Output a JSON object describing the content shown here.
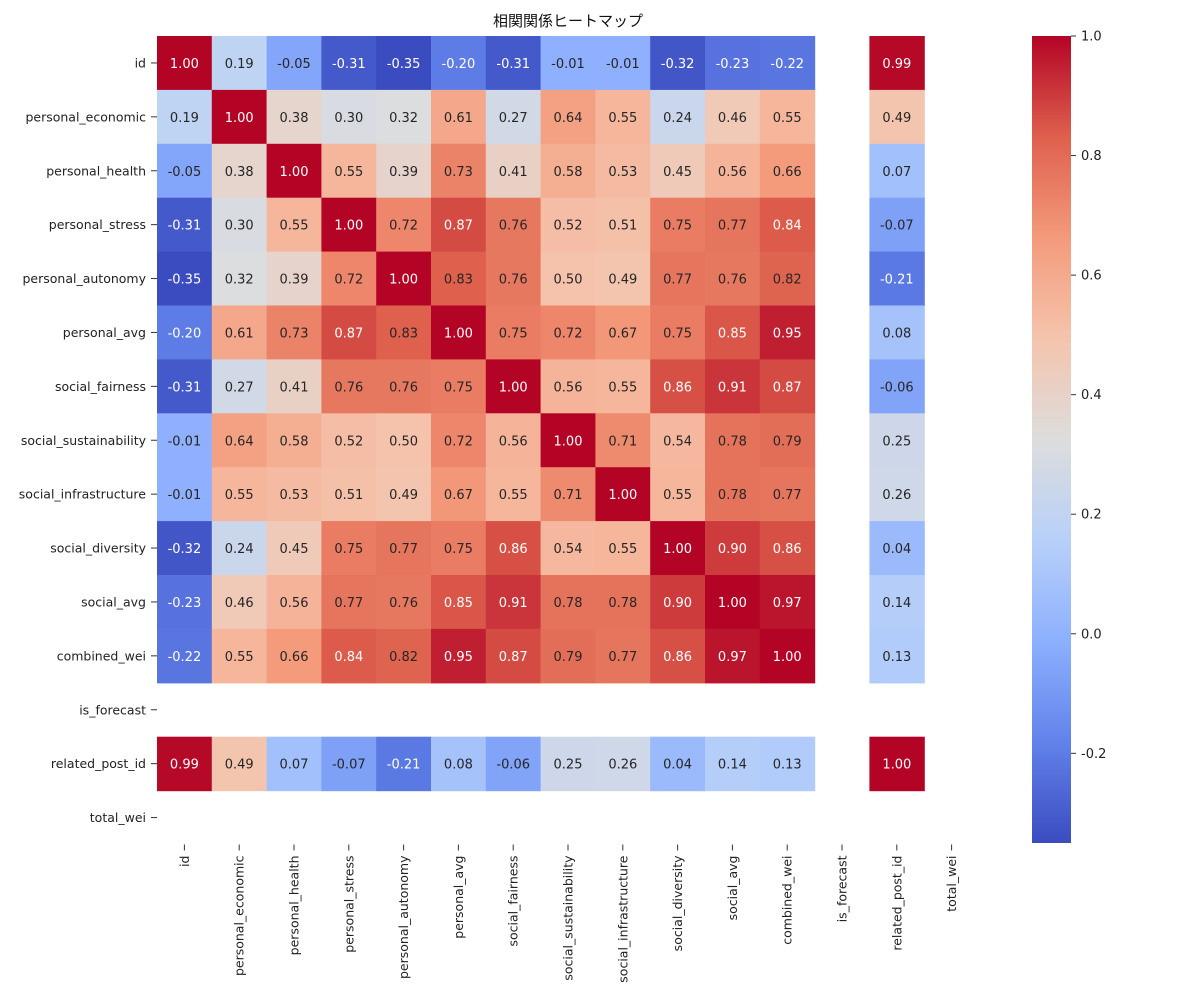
{
  "chart_data": {
    "type": "heatmap",
    "title": "相関関係ヒートマップ",
    "colormap": "coolwarm",
    "x_categories": [
      "id",
      "personal_economic",
      "personal_health",
      "personal_stress",
      "personal_autonomy",
      "personal_avg",
      "social_fairness",
      "social_sustainability",
      "social_infrastructure",
      "social_diversity",
      "social_avg",
      "combined_wei",
      "is_forecast",
      "related_post_id",
      "total_wei"
    ],
    "y_categories": [
      "id",
      "personal_economic",
      "personal_health",
      "personal_stress",
      "personal_autonomy",
      "personal_avg",
      "social_fairness",
      "social_sustainability",
      "social_infrastructure",
      "social_diversity",
      "social_avg",
      "combined_wei",
      "is_forecast",
      "related_post_id",
      "total_wei"
    ],
    "values": [
      [
        1.0,
        0.19,
        -0.05,
        -0.31,
        -0.35,
        -0.2,
        -0.31,
        -0.01,
        -0.01,
        -0.32,
        -0.23,
        -0.22,
        null,
        0.99,
        null
      ],
      [
        0.19,
        1.0,
        0.38,
        0.3,
        0.32,
        0.61,
        0.27,
        0.64,
        0.55,
        0.24,
        0.46,
        0.55,
        null,
        0.49,
        null
      ],
      [
        -0.05,
        0.38,
        1.0,
        0.55,
        0.39,
        0.73,
        0.41,
        0.58,
        0.53,
        0.45,
        0.56,
        0.66,
        null,
        0.07,
        null
      ],
      [
        -0.31,
        0.3,
        0.55,
        1.0,
        0.72,
        0.87,
        0.76,
        0.52,
        0.51,
        0.75,
        0.77,
        0.84,
        null,
        -0.07,
        null
      ],
      [
        -0.35,
        0.32,
        0.39,
        0.72,
        1.0,
        0.83,
        0.76,
        0.5,
        0.49,
        0.77,
        0.76,
        0.82,
        null,
        -0.21,
        null
      ],
      [
        -0.2,
        0.61,
        0.73,
        0.87,
        0.83,
        1.0,
        0.75,
        0.72,
        0.67,
        0.75,
        0.85,
        0.95,
        null,
        0.08,
        null
      ],
      [
        -0.31,
        0.27,
        0.41,
        0.76,
        0.76,
        0.75,
        1.0,
        0.56,
        0.55,
        0.86,
        0.91,
        0.87,
        null,
        -0.06,
        null
      ],
      [
        -0.01,
        0.64,
        0.58,
        0.52,
        0.5,
        0.72,
        0.56,
        1.0,
        0.71,
        0.54,
        0.78,
        0.79,
        null,
        0.25,
        null
      ],
      [
        -0.01,
        0.55,
        0.53,
        0.51,
        0.49,
        0.67,
        0.55,
        0.71,
        1.0,
        0.55,
        0.78,
        0.77,
        null,
        0.26,
        null
      ],
      [
        -0.32,
        0.24,
        0.45,
        0.75,
        0.77,
        0.75,
        0.86,
        0.54,
        0.55,
        1.0,
        0.9,
        0.86,
        null,
        0.04,
        null
      ],
      [
        -0.23,
        0.46,
        0.56,
        0.77,
        0.76,
        0.85,
        0.91,
        0.78,
        0.78,
        0.9,
        1.0,
        0.97,
        null,
        0.14,
        null
      ],
      [
        -0.22,
        0.55,
        0.66,
        0.84,
        0.82,
        0.95,
        0.87,
        0.79,
        0.77,
        0.86,
        0.97,
        1.0,
        null,
        0.13,
        null
      ],
      [
        null,
        null,
        null,
        null,
        null,
        null,
        null,
        null,
        null,
        null,
        null,
        null,
        null,
        null,
        null
      ],
      [
        0.99,
        0.49,
        0.07,
        -0.07,
        -0.21,
        0.08,
        -0.06,
        0.25,
        0.26,
        0.04,
        0.14,
        0.13,
        null,
        1.0,
        null
      ],
      [
        null,
        null,
        null,
        null,
        null,
        null,
        null,
        null,
        null,
        null,
        null,
        null,
        null,
        null,
        null
      ]
    ],
    "value_format": "2 decimals",
    "colorbar": {
      "range": [
        -0.35,
        1.0
      ],
      "ticks": [
        1.0,
        0.8,
        0.6,
        0.4,
        0.2,
        0.0,
        -0.2
      ],
      "tick_labels": [
        "1.0",
        "0.8",
        "0.6",
        "0.4",
        "0.2",
        "0.0",
        "-0.2"
      ]
    }
  }
}
